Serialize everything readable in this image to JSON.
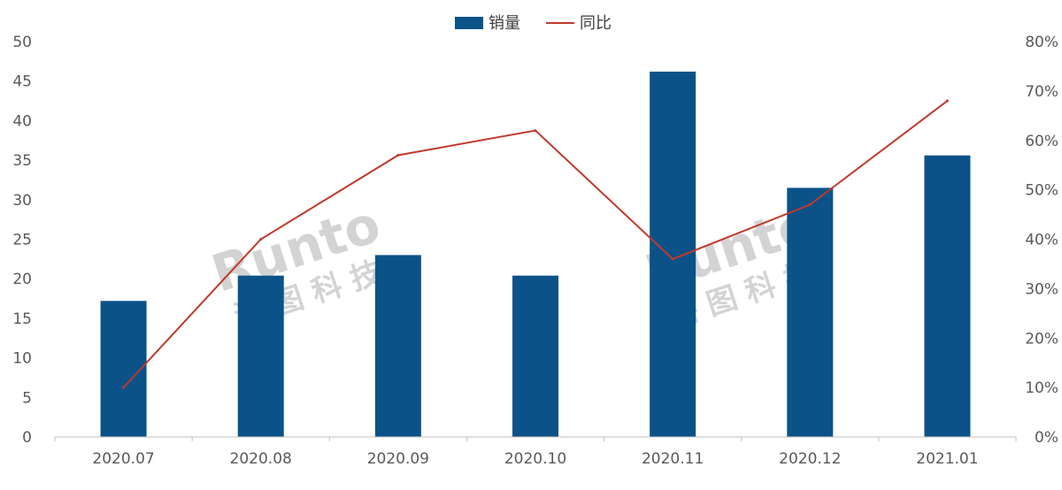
{
  "chart_data": {
    "type": "bar",
    "categories": [
      "2020.07",
      "2020.08",
      "2020.09",
      "2020.10",
      "2020.11",
      "2020.12",
      "2021.01"
    ],
    "series": [
      {
        "name": "销量",
        "type": "bar",
        "axis": "left",
        "color": "#0b5288",
        "values": [
          17.2,
          20.4,
          23.0,
          20.4,
          46.2,
          31.5,
          35.6
        ]
      },
      {
        "name": "同比",
        "type": "line",
        "axis": "right",
        "color": "#c0392b",
        "values": [
          0.1,
          0.4,
          0.57,
          0.62,
          0.36,
          0.47,
          0.68
        ]
      }
    ],
    "y_left": {
      "min": 0,
      "max": 50,
      "ticks": [
        "0",
        "5",
        "10",
        "15",
        "20",
        "25",
        "30",
        "35",
        "40",
        "45",
        "50"
      ]
    },
    "y_right": {
      "min": 0,
      "max": 0.8,
      "ticks": [
        "0%",
        "10%",
        "20%",
        "30%",
        "40%",
        "50%",
        "60%",
        "70%",
        "80%"
      ]
    },
    "legend": "top-center",
    "grid": false,
    "watermark": {
      "latin": "Runto",
      "cjk": "洛 图 科 技"
    }
  }
}
